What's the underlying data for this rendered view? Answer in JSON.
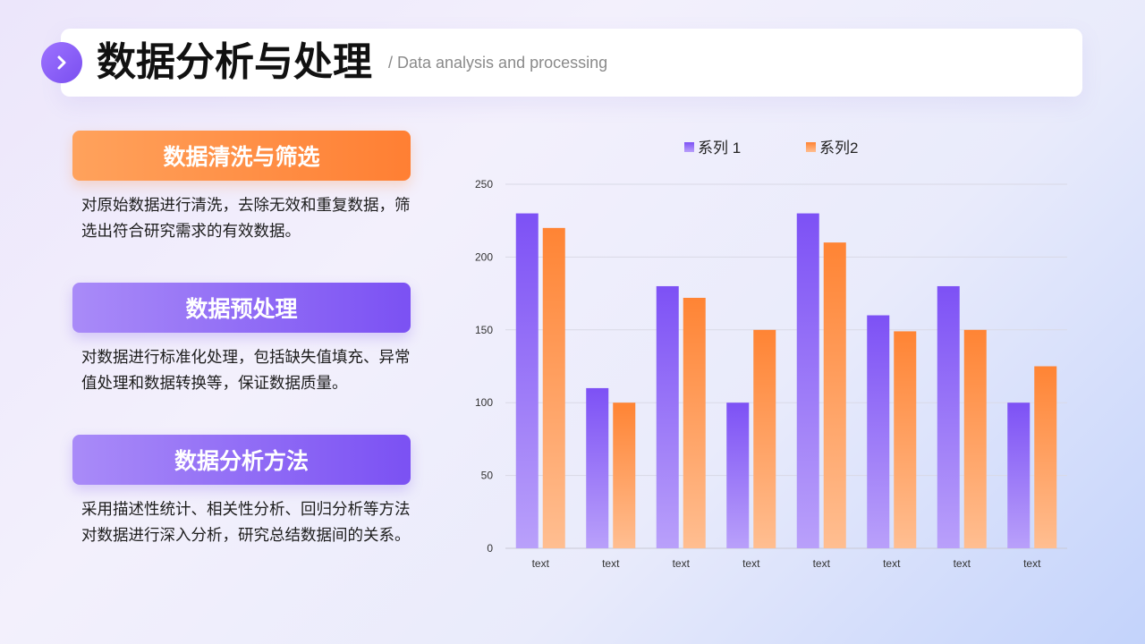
{
  "header": {
    "title": "数据分析与处理",
    "subtitle": "/ Data analysis and processing",
    "badge_icon": "chevron-right-icon"
  },
  "sections": [
    {
      "title": "数据清洗与筛选",
      "body": "对原始数据进行清洗，去除无效和重复数据，筛选出符合研究需求的有效数据。",
      "accent": "orange"
    },
    {
      "title": "数据预处理",
      "body": "对数据进行标准化处理，包括缺失值填充、异常值处理和数据转换等，保证数据质量。",
      "accent": "purple"
    },
    {
      "title": "数据分析方法",
      "body": "采用描述性统计、相关性分析、回归分析等方法对数据进行深入分析，研究总结数据间的关系。",
      "accent": "purple"
    }
  ],
  "colors": {
    "purple": "#7b51f3",
    "orange": "#ff8a3d"
  },
  "chart_data": {
    "type": "bar",
    "categories": [
      "text",
      "text",
      "text",
      "text",
      "text",
      "text",
      "text",
      "text"
    ],
    "series": [
      {
        "name": "系列 1",
        "values": [
          230,
          110,
          180,
          100,
          230,
          160,
          180,
          100
        ],
        "color": "#7b51f3"
      },
      {
        "name": "系列2",
        "values": [
          220,
          100,
          172,
          150,
          210,
          149,
          150,
          125
        ],
        "color": "#ff8a3d"
      }
    ],
    "ylim": [
      0,
      250
    ],
    "yticks": [
      0,
      50,
      100,
      150,
      200,
      250
    ],
    "grid": true,
    "legend": "top-center"
  }
}
